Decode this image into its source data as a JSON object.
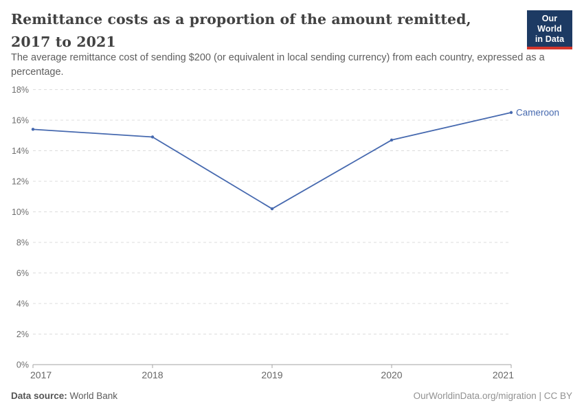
{
  "header": {
    "title": "Remittance costs as a proportion of the amount remitted, 2017 to 2021",
    "subtitle": "The average remittance cost of sending $200 (or equivalent in local sending currency) from each country, expressed as a percentage.",
    "logo": {
      "line1": "Our World",
      "line2": "in Data"
    }
  },
  "footer": {
    "source_label": "Data source:",
    "source_value": " World Bank",
    "attribution": "OurWorldinData.org/migration | CC BY"
  },
  "colors": {
    "line": "#4669AF",
    "end_label": "#4669AF",
    "logo_bg": "#1d3a63",
    "logo_accent": "#d4352b",
    "gridline": "#dcdcdc",
    "axis": "#a3a3a3",
    "y_tick_label": "#6e6e6e",
    "x_tick_label": "#666666"
  },
  "chart_data": {
    "type": "line",
    "title": "Remittance costs as a proportion of the amount remitted, 2017 to 2021",
    "subtitle": "The average remittance cost of sending $200 (or equivalent in local sending currency) from each country, expressed as a percentage.",
    "x": [
      2017,
      2018,
      2019,
      2020,
      2021
    ],
    "series": [
      {
        "name": "Cameroon",
        "values": [
          15.4,
          14.9,
          10.2,
          14.7,
          16.5
        ]
      }
    ],
    "xlabel": "",
    "ylabel": "",
    "ylim": [
      0,
      18
    ],
    "ytick_step": 2,
    "ytick_suffix": "%",
    "grid": "horizontal-dashed",
    "legend": "series-label-at-line-end"
  }
}
